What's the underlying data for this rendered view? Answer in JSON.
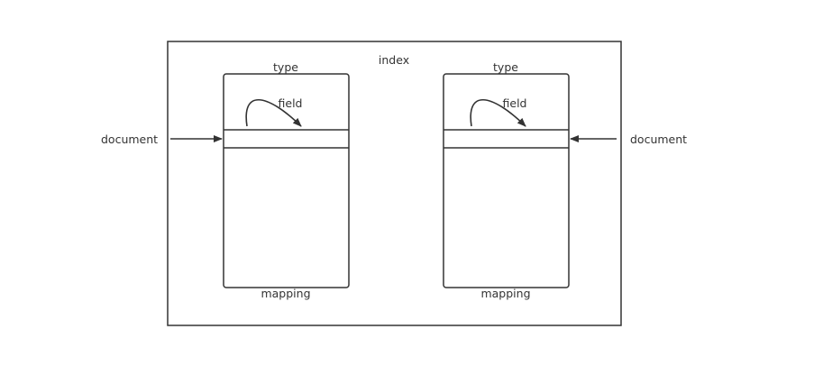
{
  "labels": {
    "index": "index",
    "type_left": "type",
    "type_right": "type",
    "field_left": "field",
    "field_right": "field",
    "mapping_left": "mapping",
    "mapping_right": "mapping",
    "document_left": "document",
    "document_right": "document"
  },
  "colors": {
    "stroke": "#333333",
    "background": "#ffffff"
  }
}
